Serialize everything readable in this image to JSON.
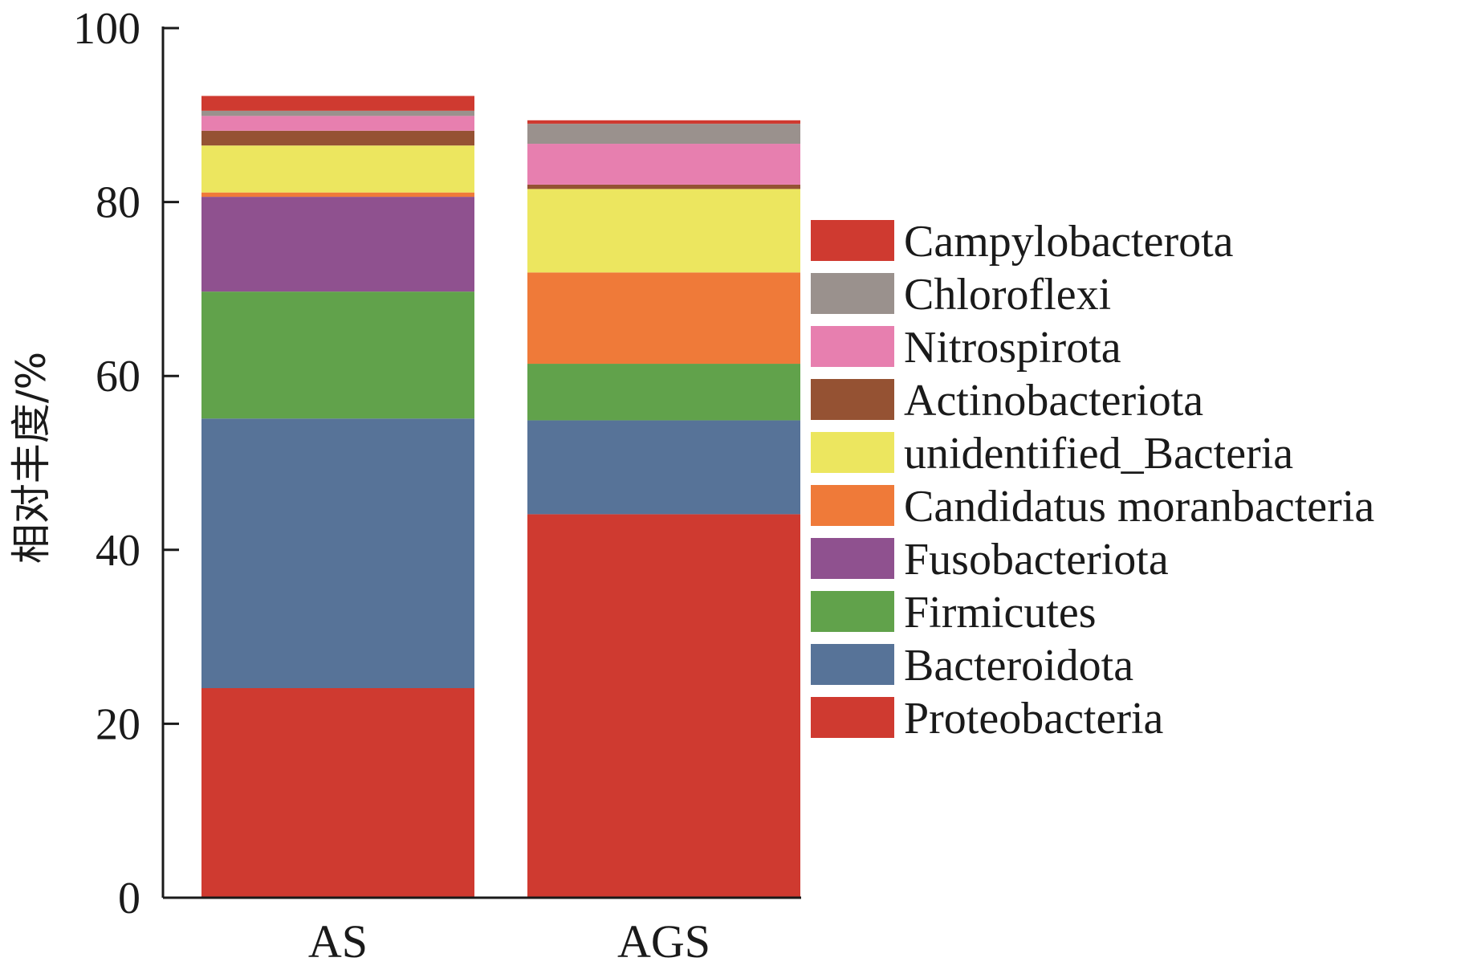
{
  "chart_data": {
    "type": "bar",
    "stacked": true,
    "title": "",
    "xlabel": "",
    "ylabel": "相对丰度/%",
    "ylim": [
      0,
      100
    ],
    "yticks": [
      0,
      20,
      40,
      60,
      80,
      100
    ],
    "grid": false,
    "legend_position": "right",
    "categories": [
      "AS",
      "AGS"
    ],
    "series": [
      {
        "name": "Proteobacteria",
        "color": "#cf3a30",
        "values": [
          24.1,
          44.1
        ]
      },
      {
        "name": "Bacteroidota",
        "color": "#577398",
        "values": [
          31.0,
          10.8
        ]
      },
      {
        "name": "Firmicutes",
        "color": "#61a24b",
        "values": [
          14.6,
          6.5
        ]
      },
      {
        "name": "Fusobacteriota",
        "color": "#8f518f",
        "values": [
          10.9,
          0.0
        ]
      },
      {
        "name": "Candidatus moranbacteria",
        "color": "#ef7a39",
        "values": [
          0.5,
          10.5
        ]
      },
      {
        "name": "unidentified_Bacteria",
        "color": "#ece65f",
        "values": [
          5.4,
          9.6
        ]
      },
      {
        "name": "Actinobacteriota",
        "color": "#955233",
        "values": [
          1.7,
          0.5
        ]
      },
      {
        "name": "Nitrospirota",
        "color": "#e77faf",
        "values": [
          1.7,
          4.7
        ]
      },
      {
        "name": "Chloroflexi",
        "color": "#9a918d",
        "values": [
          0.6,
          2.3
        ]
      },
      {
        "name": "Campylobacterota",
        "color": "#cf3a30",
        "values": [
          1.7,
          0.4
        ]
      }
    ]
  }
}
